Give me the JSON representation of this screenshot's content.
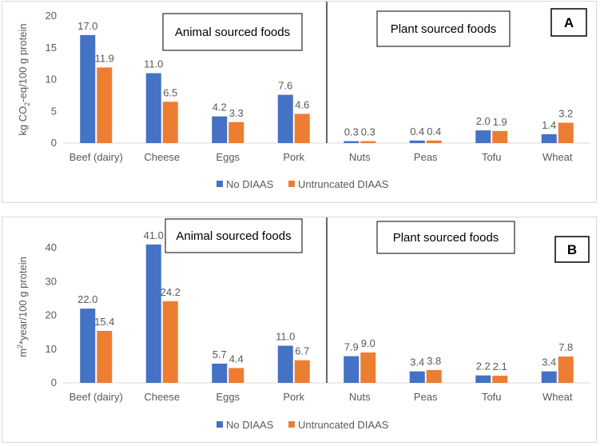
{
  "colors": {
    "series1": "#4472C4",
    "series2": "#ED7D31",
    "axis_text": "#595959",
    "gridline": "#d9d9d9",
    "divider": "#000000"
  },
  "chart_data": [
    {
      "type": "bar",
      "panel_label": "A",
      "ylabel": "kg CO2-eq/100 g protein",
      "ylabel_main": "kg CO",
      "ylabel_sub": "2",
      "ylabel_rest": "-eq/100 g protein",
      "ylim": [
        0,
        20
      ],
      "yticks": [
        "0",
        "5",
        "10",
        "15",
        "20"
      ],
      "grid": false,
      "group_labels": [
        "Animal sourced foods",
        "Plant sourced foods"
      ],
      "categories": [
        "Beef (dairy)",
        "Cheese",
        "Eggs",
        "Pork",
        "Nuts",
        "Peas",
        "Tofu",
        "Wheat"
      ],
      "series": [
        {
          "name": "No DIAAS",
          "values": [
            17.0,
            11.0,
            4.2,
            7.6,
            0.3,
            0.4,
            2.0,
            1.4
          ],
          "labels": [
            "17.0",
            "11.0",
            "4.2",
            "7.6",
            "0.3",
            "0.4",
            "2.0",
            "1.4"
          ]
        },
        {
          "name": "Untruncated DIAAS",
          "values": [
            11.9,
            6.5,
            3.3,
            4.6,
            0.3,
            0.4,
            1.9,
            3.2
          ],
          "labels": [
            "11.9",
            "6.5",
            "3.3",
            "4.6",
            "0.3",
            "0.4",
            "1.9",
            "3.2"
          ]
        }
      ],
      "legend": "bottom"
    },
    {
      "type": "bar",
      "panel_label": "B",
      "ylabel": "m2*year/100 g protein",
      "ylabel_main": "m",
      "ylabel_sup": "2",
      "ylabel_rest": "*year/100 g protein",
      "ylim": [
        0,
        45
      ],
      "yticks": [
        "0",
        "10",
        "20",
        "30",
        "40"
      ],
      "grid": false,
      "group_labels": [
        "Animal sourced foods",
        "Plant sourced foods"
      ],
      "categories": [
        "Beef (dairy)",
        "Cheese",
        "Eggs",
        "Pork",
        "Nuts",
        "Peas",
        "Tofu",
        "Wheat"
      ],
      "series": [
        {
          "name": "No DIAAS",
          "values": [
            22.0,
            41.0,
            5.7,
            11.0,
            7.9,
            3.4,
            2.2,
            3.4
          ],
          "labels": [
            "22.0",
            "41.0",
            "5.7",
            "11.0",
            "7.9",
            "3.4",
            "2.2",
            "3.4"
          ]
        },
        {
          "name": "Untruncated DIAAS",
          "values": [
            15.4,
            24.2,
            4.4,
            6.7,
            9.0,
            3.8,
            2.1,
            7.8
          ],
          "labels": [
            "15.4",
            "24.2",
            "4.4",
            "6.7",
            "9.0",
            "3.8",
            "2.1",
            "7.8"
          ]
        }
      ],
      "legend": "bottom"
    }
  ]
}
